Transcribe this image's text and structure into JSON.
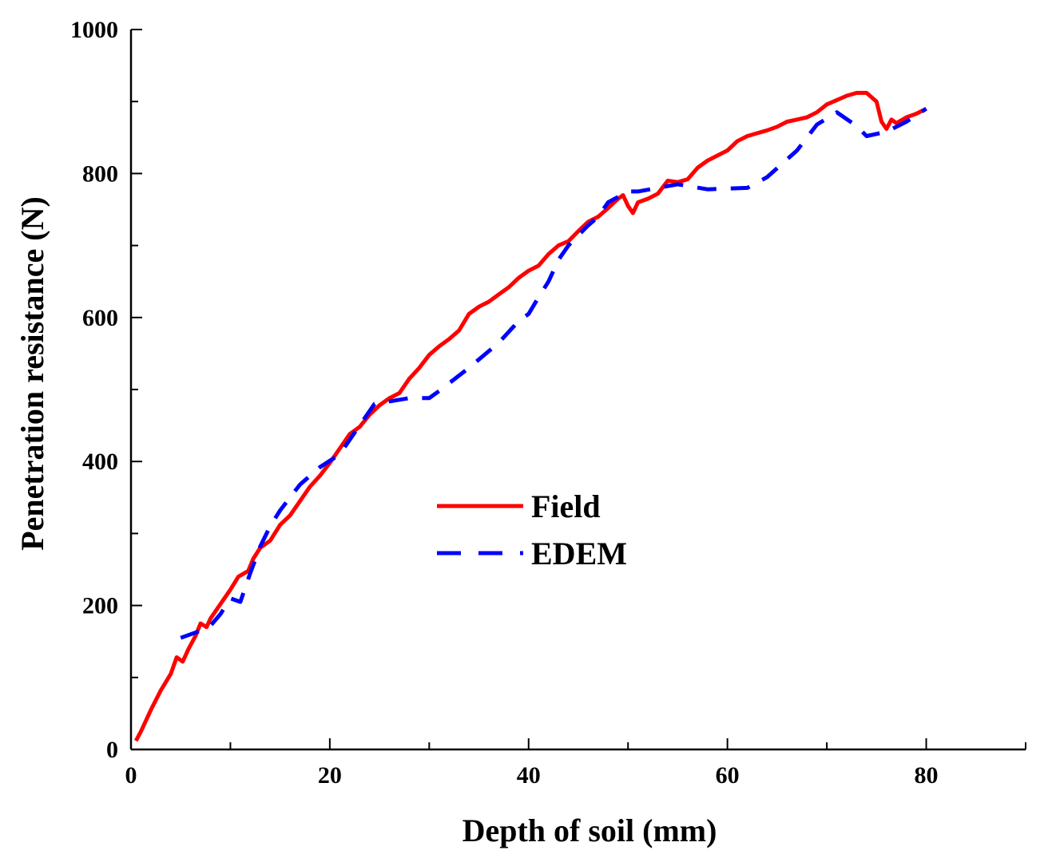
{
  "chart_data": {
    "type": "line",
    "xlabel": "Depth of soil (mm)",
    "ylabel": "Penetration resistance (N)",
    "xlim": [
      0,
      90
    ],
    "ylim": [
      0,
      1000
    ],
    "x_ticks": [
      0,
      20,
      40,
      60,
      80
    ],
    "y_ticks": [
      0,
      200,
      400,
      600,
      800,
      1000
    ],
    "x_tick_labels": [
      "0",
      "20",
      "40",
      "60",
      "80"
    ],
    "y_tick_labels": [
      "0",
      "200",
      "400",
      "600",
      "800",
      "1000"
    ],
    "grid": false,
    "legend_position": "center",
    "series": [
      {
        "name": "Field",
        "color": "#ff0000",
        "style": "solid",
        "points": [
          [
            0.5,
            12
          ],
          [
            1,
            25
          ],
          [
            2,
            55
          ],
          [
            3,
            82
          ],
          [
            4,
            105
          ],
          [
            4.6,
            128
          ],
          [
            5.2,
            122
          ],
          [
            5.8,
            140
          ],
          [
            6.5,
            158
          ],
          [
            7,
            175
          ],
          [
            7.6,
            170
          ],
          [
            8,
            182
          ],
          [
            9,
            202
          ],
          [
            10,
            222
          ],
          [
            10.8,
            240
          ],
          [
            11.8,
            248
          ],
          [
            12.3,
            265
          ],
          [
            13,
            280
          ],
          [
            14,
            290
          ],
          [
            15,
            312
          ],
          [
            16,
            325
          ],
          [
            17,
            345
          ],
          [
            18,
            365
          ],
          [
            19,
            380
          ],
          [
            20,
            398
          ],
          [
            21,
            418
          ],
          [
            22,
            438
          ],
          [
            23,
            448
          ],
          [
            24,
            465
          ],
          [
            25,
            478
          ],
          [
            26,
            488
          ],
          [
            27,
            495
          ],
          [
            28,
            515
          ],
          [
            29,
            530
          ],
          [
            30,
            548
          ],
          [
            31,
            560
          ],
          [
            32,
            570
          ],
          [
            33,
            582
          ],
          [
            34,
            605
          ],
          [
            35,
            615
          ],
          [
            36,
            622
          ],
          [
            37,
            632
          ],
          [
            38,
            642
          ],
          [
            39,
            655
          ],
          [
            40,
            665
          ],
          [
            41,
            672
          ],
          [
            42,
            688
          ],
          [
            43,
            700
          ],
          [
            44,
            706
          ],
          [
            45,
            720
          ],
          [
            46,
            733
          ],
          [
            47,
            740
          ],
          [
            48,
            752
          ],
          [
            49,
            765
          ],
          [
            49.5,
            770
          ],
          [
            50,
            755
          ],
          [
            50.5,
            745
          ],
          [
            51,
            760
          ],
          [
            52,
            765
          ],
          [
            53,
            772
          ],
          [
            54,
            790
          ],
          [
            55,
            788
          ],
          [
            56,
            792
          ],
          [
            57,
            808
          ],
          [
            58,
            818
          ],
          [
            59,
            825
          ],
          [
            60,
            832
          ],
          [
            61,
            845
          ],
          [
            62,
            852
          ],
          [
            63,
            856
          ],
          [
            64,
            860
          ],
          [
            65,
            865
          ],
          [
            66,
            872
          ],
          [
            67,
            875
          ],
          [
            68,
            878
          ],
          [
            69,
            885
          ],
          [
            70,
            896
          ],
          [
            71,
            902
          ],
          [
            72,
            908
          ],
          [
            73,
            912
          ],
          [
            74,
            912
          ],
          [
            75,
            900
          ],
          [
            75.5,
            872
          ],
          [
            76,
            862
          ],
          [
            76.5,
            875
          ],
          [
            77,
            870
          ],
          [
            78,
            878
          ],
          [
            79,
            883
          ],
          [
            80,
            890
          ]
        ]
      },
      {
        "name": "EDEM",
        "color": "#0000ff",
        "style": "dashed",
        "points": [
          [
            5,
            155
          ],
          [
            7,
            165
          ],
          [
            8,
            172
          ],
          [
            9,
            188
          ],
          [
            10,
            210
          ],
          [
            11,
            205
          ],
          [
            12,
            245
          ],
          [
            13,
            282
          ],
          [
            14,
            310
          ],
          [
            15,
            332
          ],
          [
            17,
            368
          ],
          [
            19,
            392
          ],
          [
            21,
            410
          ],
          [
            23,
            450
          ],
          [
            24.5,
            480
          ],
          [
            28,
            488
          ],
          [
            30,
            488
          ],
          [
            31,
            498
          ],
          [
            34,
            530
          ],
          [
            37,
            565
          ],
          [
            39,
            595
          ],
          [
            40,
            605
          ],
          [
            41,
            628
          ],
          [
            42,
            650
          ],
          [
            43,
            680
          ],
          [
            44,
            700
          ],
          [
            46,
            728
          ],
          [
            47,
            740
          ],
          [
            48,
            760
          ],
          [
            50,
            775
          ],
          [
            51,
            775
          ],
          [
            55,
            785
          ],
          [
            58,
            778
          ],
          [
            62,
            780
          ],
          [
            64,
            795
          ],
          [
            67,
            832
          ],
          [
            69,
            868
          ],
          [
            71,
            885
          ],
          [
            73,
            866
          ],
          [
            74,
            852
          ],
          [
            76,
            858
          ],
          [
            78,
            872
          ],
          [
            80,
            890
          ]
        ]
      }
    ]
  }
}
